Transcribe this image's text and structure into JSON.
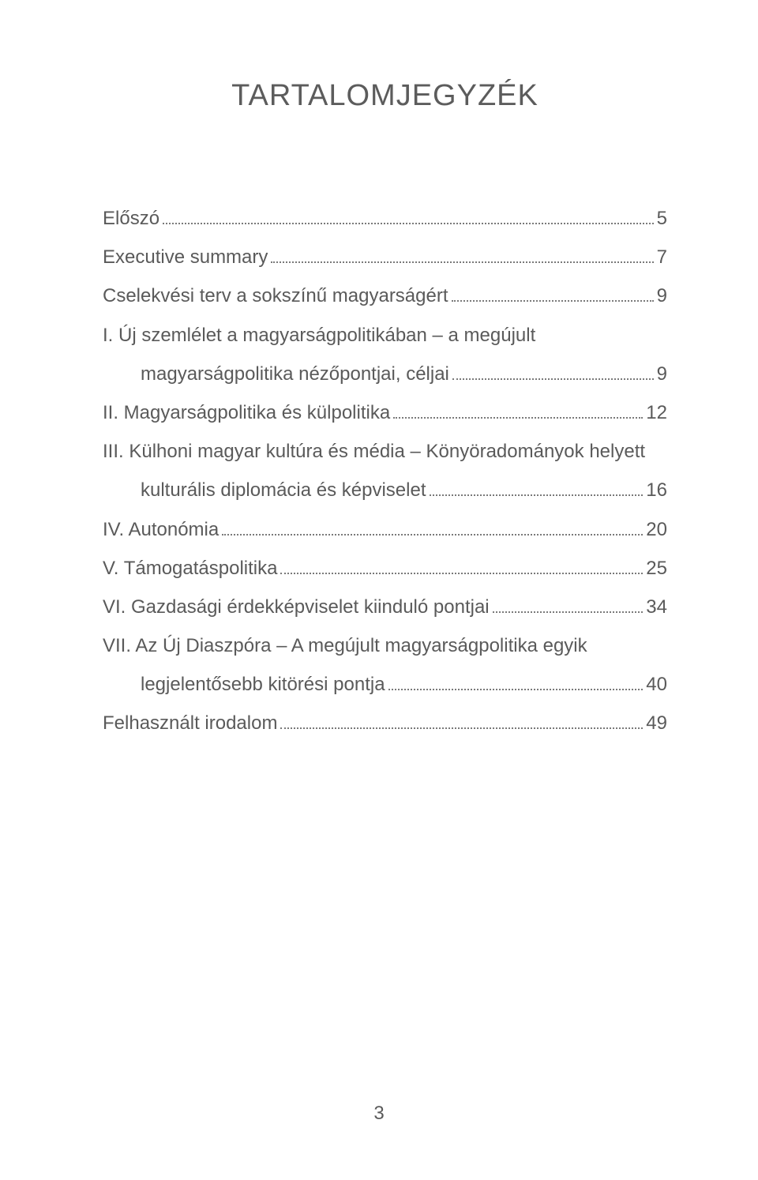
{
  "title": "TARTALOMJEGYZÉK",
  "entries": [
    {
      "label": "Előszó",
      "page": "5",
      "sub": false,
      "continues": false
    },
    {
      "label": "Executive summary",
      "page": "7",
      "sub": false,
      "continues": false
    },
    {
      "label": "Cselekvési terv a sokszínű magyarságért",
      "page": "9",
      "sub": false,
      "continues": false
    },
    {
      "label": "I. Új szemlélet a magyarságpolitikában – a megújult",
      "page": "",
      "sub": false,
      "continues": true
    },
    {
      "label": "magyarságpolitika nézőpontjai, céljai",
      "page": "9",
      "sub": true,
      "continues": false
    },
    {
      "label": "II. Magyarságpolitika és külpolitika",
      "page": "12",
      "sub": false,
      "continues": false
    },
    {
      "label": "III. Külhoni magyar kultúra és média – Könyöradományok helyett",
      "page": "",
      "sub": false,
      "continues": true
    },
    {
      "label": "kulturális diplomácia és képviselet",
      "page": "16",
      "sub": true,
      "continues": false
    },
    {
      "label": "IV. Autonómia",
      "page": "20",
      "sub": false,
      "continues": false
    },
    {
      "label": "V. Támogatáspolitika",
      "page": "25",
      "sub": false,
      "continues": false
    },
    {
      "label": "VI. Gazdasági érdekképviselet kiinduló pontjai",
      "page": "34",
      "sub": false,
      "continues": false
    },
    {
      "label": "VII. Az Új Diaszpóra – A megújult magyarságpolitika egyik",
      "page": "",
      "sub": false,
      "continues": true
    },
    {
      "label": "legjelentősebb kitörési pontja",
      "page": "40",
      "sub": true,
      "continues": false
    },
    {
      "label": "Felhasznált irodalom",
      "page": "49",
      "sub": false,
      "continues": false
    }
  ],
  "page_number": "3",
  "colors": {
    "text": "#5a5a5a",
    "background": "#ffffff",
    "leader": "#7a7a7a"
  },
  "typography": {
    "title_fontsize": 38,
    "body_fontsize": 24,
    "font_family": "Myriad Pro / sans-serif"
  }
}
